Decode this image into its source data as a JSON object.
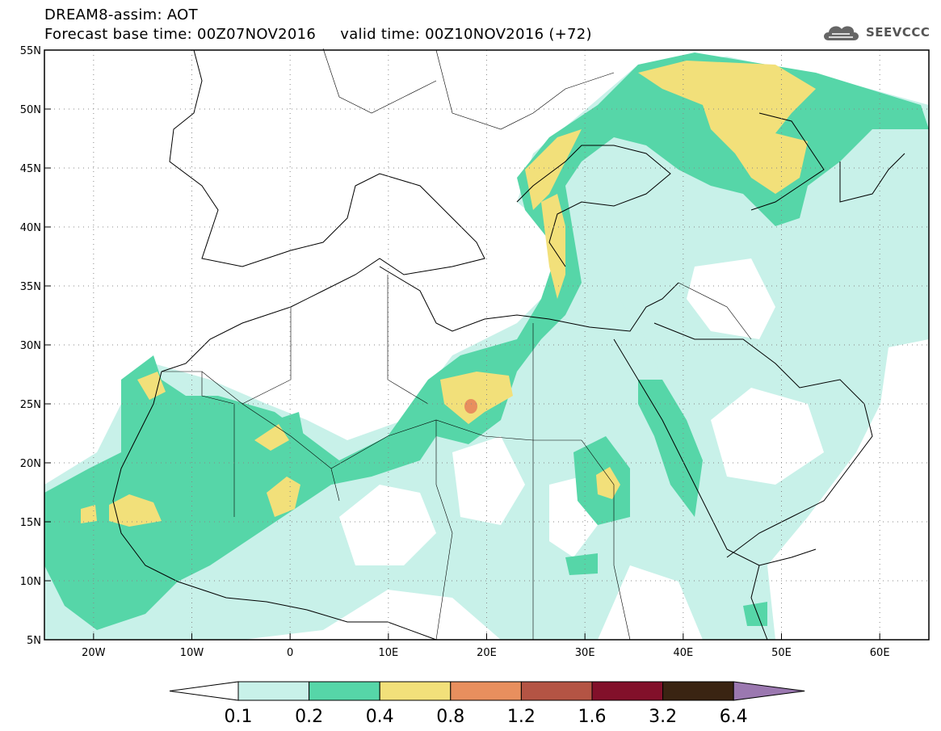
{
  "header": {
    "title_line1": "DREAM8-assim: AOT",
    "title_line2": "Forecast base time: 00Z07NOV2016     valid time: 00Z10NOV2016 (+72)"
  },
  "logo": {
    "text": "SEEVCCC",
    "icon": "cloud-icon"
  },
  "map": {
    "lon_ticks": [
      "20W",
      "10W",
      "0",
      "10E",
      "20E",
      "30E",
      "40E",
      "50E",
      "60E"
    ],
    "lat_ticks": [
      "55N",
      "50N",
      "45N",
      "40N",
      "35N",
      "30N",
      "25N",
      "20N",
      "15N",
      "10N",
      "5N"
    ],
    "lon_range": [
      -25,
      65
    ],
    "lat_range": [
      5,
      55
    ]
  },
  "legend": {
    "labels": [
      "0.1",
      "0.2",
      "0.4",
      "0.8",
      "1.2",
      "1.6",
      "3.2",
      "6.4"
    ],
    "colors": [
      "#c8f1e9",
      "#56d6a8",
      "#f2e07a",
      "#e88f5e",
      "#b45444",
      "#82102a",
      "#3a2412",
      "#9b78b0"
    ],
    "under_color": "#ffffff"
  }
}
